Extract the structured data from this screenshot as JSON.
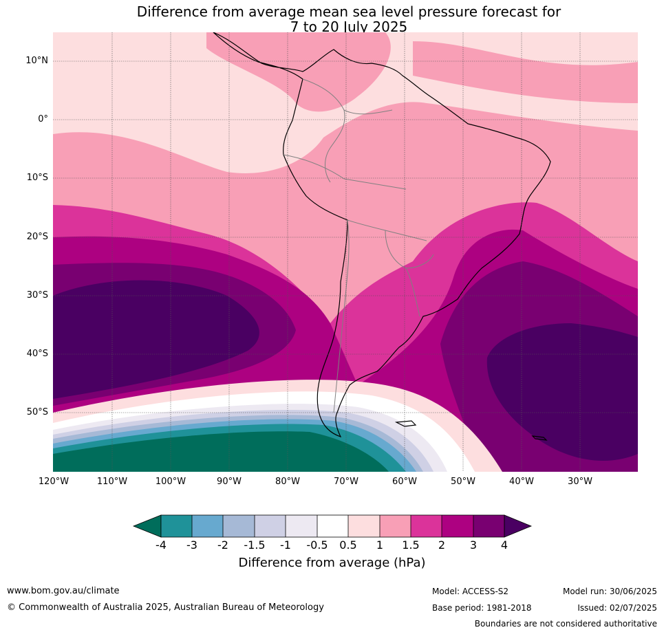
{
  "title": {
    "line1": "Difference from average mean sea level pressure forecast for",
    "line2": "7 to 20 July 2025"
  },
  "map": {
    "lat_labels": [
      "10°N",
      "0°",
      "10°S",
      "20°S",
      "30°S",
      "40°S",
      "50°S"
    ],
    "lon_labels": [
      "120°W",
      "110°W",
      "100°W",
      "90°W",
      "80°W",
      "70°W",
      "60°W",
      "50°W",
      "40°W",
      "30°W"
    ],
    "colors": {
      "teal_dark": "#006d5b",
      "teal": "#1f9299",
      "blue": "#67a9cf",
      "blue_grey": "#a6b9d6",
      "lavender": "#cfd0e5",
      "pale_lavender": "#ede9f2",
      "white": "#ffffff",
      "pale_pink": "#fddedf",
      "pink": "#f89fb6",
      "magenta": "#db339a",
      "dark_magenta": "#ad0181",
      "purple": "#790071",
      "deep_purple": "#4a0062"
    }
  },
  "colorbar": {
    "ticks": [
      "-4",
      "-3",
      "-2",
      "-1.5",
      "-1",
      "-0.5",
      "0.5",
      "1",
      "1.5",
      "2",
      "3",
      "4"
    ],
    "label": "Difference from average (hPa)"
  },
  "footer": {
    "url": "www.bom.gov.au/climate",
    "copyright": "© Commonwealth of Australia 2025, Australian Bureau of Meteorology",
    "model": "Model: ACCESS-S2",
    "base_period": "Base period: 1981-2018",
    "model_run": "Model run: 30/06/2025",
    "issued": "Issued: 02/07/2025",
    "disclaimer": "Boundaries are not considered authoritative"
  }
}
